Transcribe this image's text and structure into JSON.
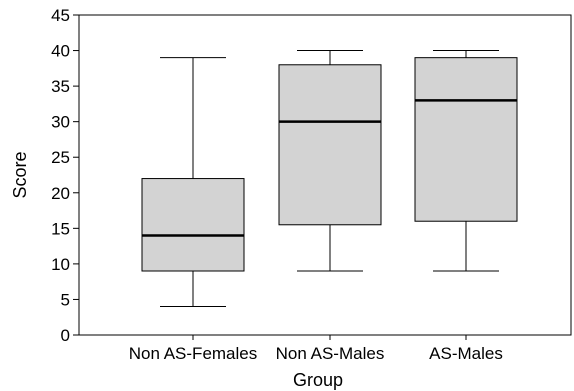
{
  "chart_data": {
    "type": "boxplot",
    "title": "",
    "xlabel": "Group",
    "ylabel": "Score",
    "ylim": [
      0,
      45
    ],
    "yticks": [
      0,
      5,
      10,
      15,
      20,
      25,
      30,
      35,
      40,
      45
    ],
    "grid": false,
    "legend": "none",
    "box_fill": "#d3d3d3",
    "categories": [
      "Non AS-Females",
      "Non AS-Males",
      "AS-Males"
    ],
    "boxes": [
      {
        "category": "Non AS-Females",
        "min": 4,
        "q1": 9,
        "median": 14,
        "q3": 22,
        "max": 39
      },
      {
        "category": "Non AS-Males",
        "min": 9,
        "q1": 15.5,
        "median": 30,
        "q3": 38,
        "max": 40
      },
      {
        "category": "AS-Males",
        "min": 9,
        "q1": 16,
        "median": 33,
        "q3": 39,
        "max": 40
      }
    ]
  }
}
